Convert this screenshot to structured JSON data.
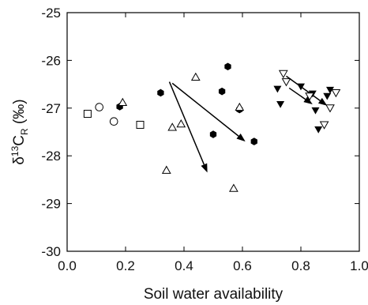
{
  "chart_data": {
    "type": "scatter",
    "xlabel": "Soil water availability",
    "ylabel": {
      "prefix": "δ",
      "sup": "13",
      "main": "C",
      "sub": "R",
      "unit": " (‰)"
    },
    "xlim": [
      0.0,
      1.0
    ],
    "ylim": [
      -30,
      -25
    ],
    "xticks": [
      "0.0",
      "0.2",
      "0.4",
      "0.6",
      "0.8",
      "1.0"
    ],
    "yticks": [
      "-25",
      "-26",
      "-27",
      "-28",
      "-29",
      "-30"
    ],
    "grid": false,
    "series": [
      {
        "marker": "square-open",
        "points": [
          [
            0.07,
            -27.12
          ],
          [
            0.25,
            -27.35
          ]
        ]
      },
      {
        "marker": "circle-open",
        "points": [
          [
            0.11,
            -26.98
          ],
          [
            0.16,
            -27.28
          ]
        ]
      },
      {
        "marker": "hexagon-filled",
        "points": [
          [
            0.18,
            -26.97
          ],
          [
            0.32,
            -26.68
          ],
          [
            0.5,
            -27.55
          ],
          [
            0.53,
            -26.65
          ],
          [
            0.55,
            -26.13
          ],
          [
            0.59,
            -27.03
          ],
          [
            0.64,
            -27.7
          ]
        ]
      },
      {
        "marker": "triangle-up-open",
        "points": [
          [
            0.19,
            -26.88
          ],
          [
            0.34,
            -28.3
          ],
          [
            0.36,
            -27.4
          ],
          [
            0.39,
            -27.33
          ],
          [
            0.44,
            -26.35
          ],
          [
            0.57,
            -28.68
          ],
          [
            0.59,
            -26.98
          ]
        ]
      },
      {
        "marker": "triangle-down-filled",
        "points": [
          [
            0.72,
            -26.6
          ],
          [
            0.73,
            -26.92
          ],
          [
            0.8,
            -26.55
          ],
          [
            0.84,
            -26.7
          ],
          [
            0.85,
            -27.05
          ],
          [
            0.86,
            -27.45
          ],
          [
            0.89,
            -26.75
          ],
          [
            0.9,
            -26.62
          ]
        ]
      },
      {
        "marker": "triangle-down-open",
        "points": [
          [
            0.74,
            -26.28
          ],
          [
            0.75,
            -26.45
          ],
          [
            0.83,
            -26.75
          ],
          [
            0.88,
            -27.35
          ],
          [
            0.9,
            -27.0
          ],
          [
            0.92,
            -26.68
          ]
        ]
      }
    ],
    "arrows": [
      {
        "from": [
          0.35,
          -26.45
        ],
        "to": [
          0.48,
          -28.35
        ]
      },
      {
        "from": [
          0.36,
          -26.48
        ],
        "to": [
          0.61,
          -27.7
        ]
      },
      {
        "from": [
          0.75,
          -26.33
        ],
        "to": [
          0.89,
          -26.95
        ]
      },
      {
        "from": [
          0.76,
          -26.58
        ],
        "to": [
          0.84,
          -26.92
        ]
      }
    ]
  }
}
